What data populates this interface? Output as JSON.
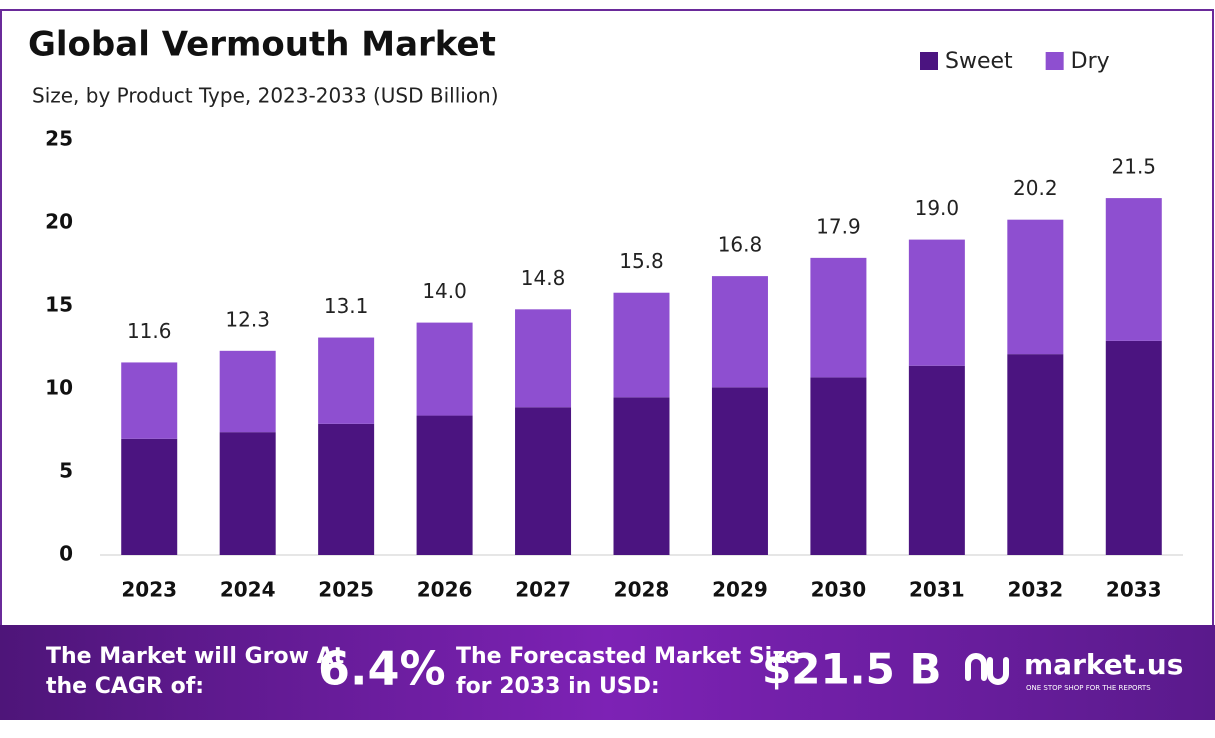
{
  "chart_data": {
    "type": "stacked_bar",
    "title": "Global Vermouth Market",
    "subtitle": "Size, by Product Type, 2023-2033 (USD Billion)",
    "categories": [
      "2023",
      "2024",
      "2025",
      "2026",
      "2027",
      "2028",
      "2029",
      "2030",
      "2031",
      "2032",
      "2033"
    ],
    "series": [
      {
        "name": "Sweet",
        "color": "#4b1480",
        "values": [
          7.0,
          7.4,
          7.9,
          8.4,
          8.9,
          9.5,
          10.1,
          10.7,
          11.4,
          12.1,
          12.9
        ]
      },
      {
        "name": "Dry",
        "color": "#8e4fd0",
        "values": [
          4.6,
          4.9,
          5.2,
          5.6,
          5.9,
          6.3,
          6.7,
          7.2,
          7.6,
          8.1,
          8.6
        ]
      }
    ],
    "totals": [
      11.6,
      12.3,
      13.1,
      14.0,
      14.8,
      15.8,
      16.8,
      17.9,
      19.0,
      20.2,
      21.5
    ],
    "total_labels": [
      "11.6",
      "12.3",
      "13.1",
      "14.0",
      "14.8",
      "15.8",
      "16.8",
      "17.9",
      "19.0",
      "20.2",
      "21.5"
    ],
    "ylim": [
      0,
      25
    ],
    "yticks": [
      0,
      5,
      10,
      15,
      20,
      25
    ],
    "grid": false,
    "legend": "top-right"
  },
  "footer": {
    "cagr_text": "The Market will Grow At the CAGR of:",
    "cagr_value": "6.4%",
    "forecast_text": "The Forecasted Market Size for 2033 in USD:",
    "forecast_value": "$21.5 B",
    "brand": "market.us",
    "tagline": "ONE STOP SHOP FOR THE REPORTS"
  }
}
